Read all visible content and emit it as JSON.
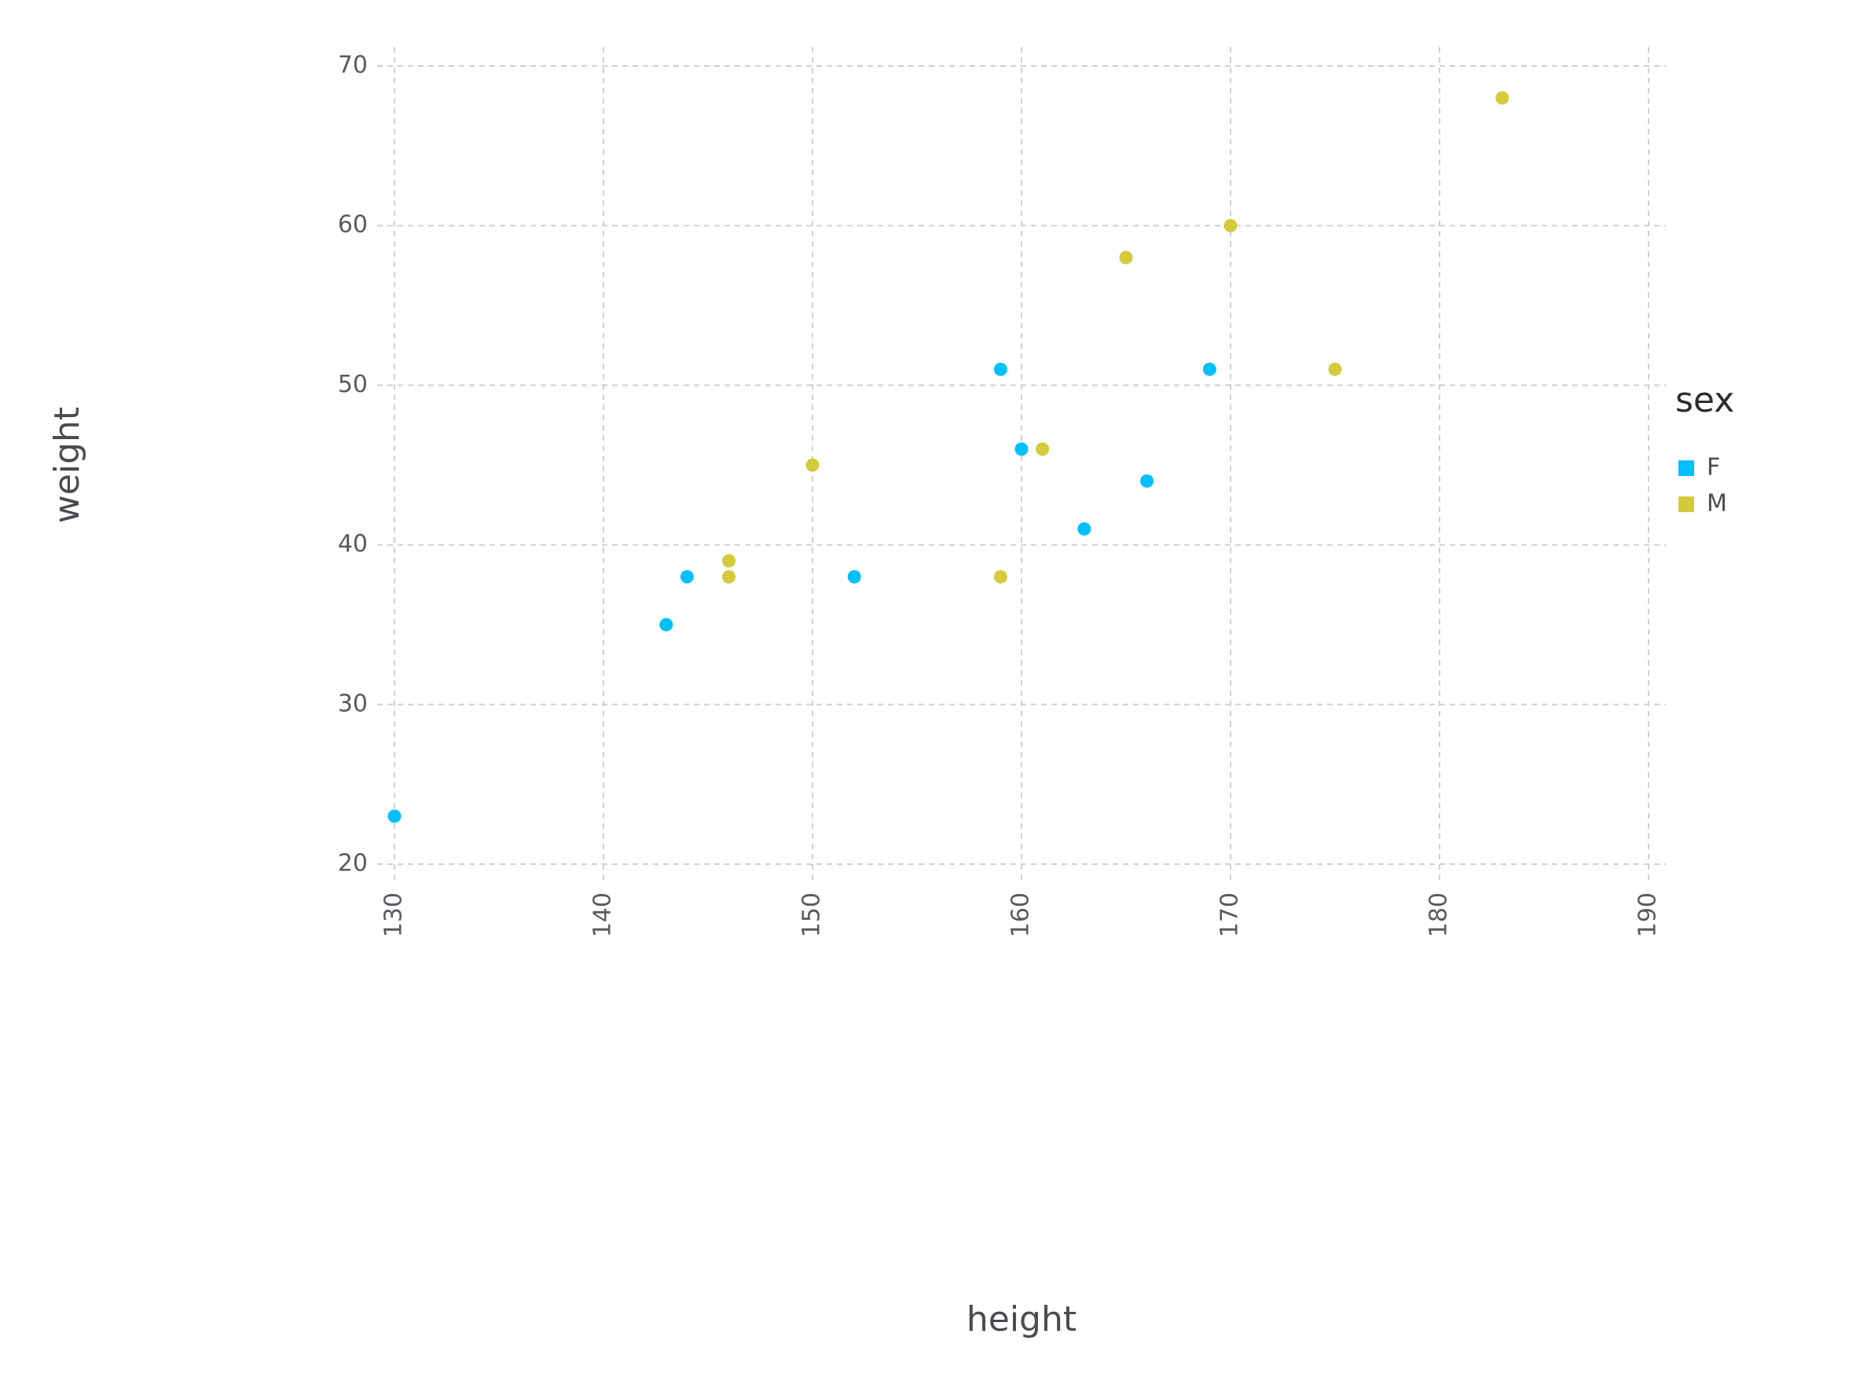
{
  "chart_data": {
    "type": "scatter",
    "title": "",
    "xlabel": "height",
    "ylabel": "weight",
    "xlim": [
      130,
      190
    ],
    "ylim": [
      20,
      70
    ],
    "x_ticks": [
      130,
      140,
      150,
      160,
      170,
      180,
      190
    ],
    "y_ticks": [
      20,
      30,
      40,
      50,
      60,
      70
    ],
    "grid": true,
    "legend_position": "right",
    "legend_title": "sex",
    "series": [
      {
        "name": "F",
        "color": "#00bfff",
        "points": [
          {
            "x": 130,
            "y": 23
          },
          {
            "x": 143,
            "y": 35
          },
          {
            "x": 144,
            "y": 38
          },
          {
            "x": 152,
            "y": 38
          },
          {
            "x": 159,
            "y": 51
          },
          {
            "x": 160,
            "y": 46
          },
          {
            "x": 163,
            "y": 41
          },
          {
            "x": 166,
            "y": 44
          },
          {
            "x": 169,
            "y": 51
          }
        ]
      },
      {
        "name": "M",
        "color": "#d4ca3a",
        "points": [
          {
            "x": 146,
            "y": 39
          },
          {
            "x": 146,
            "y": 38
          },
          {
            "x": 150,
            "y": 45
          },
          {
            "x": 159,
            "y": 38
          },
          {
            "x": 161,
            "y": 46
          },
          {
            "x": 165,
            "y": 58
          },
          {
            "x": 170,
            "y": 60
          },
          {
            "x": 175,
            "y": 51
          },
          {
            "x": 183,
            "y": 68
          }
        ]
      }
    ]
  }
}
